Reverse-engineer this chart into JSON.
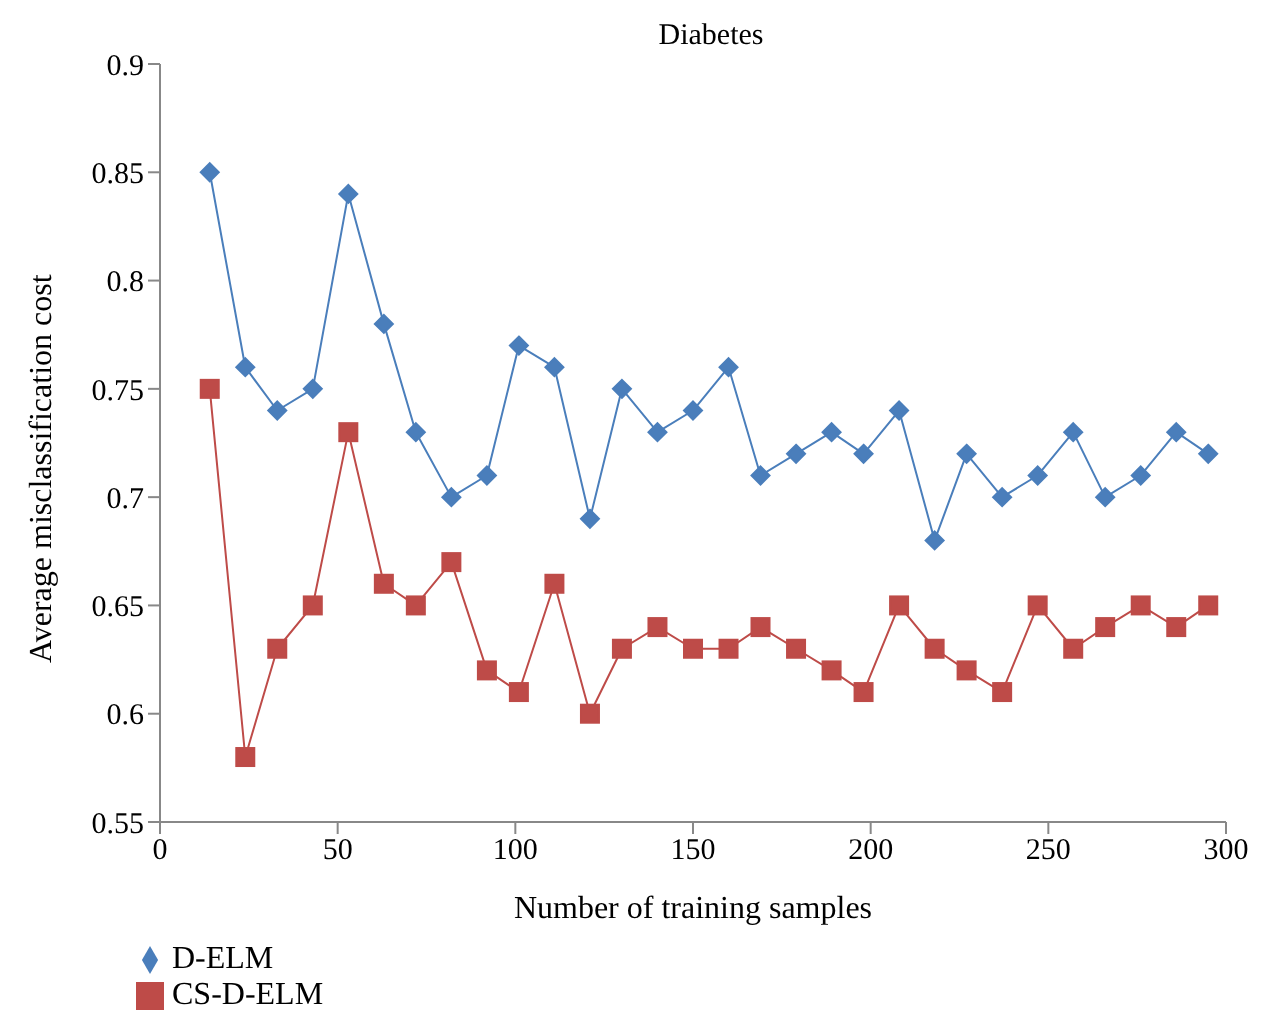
{
  "chart_data": {
    "type": "line",
    "title": "Diabetes",
    "xlabel": "Number of training samples",
    "ylabel": "Average misclassification cost",
    "x": [
      14,
      24,
      33,
      43,
      53,
      63,
      72,
      82,
      92,
      101,
      111,
      121,
      130,
      140,
      150,
      160,
      169,
      179,
      189,
      198,
      208,
      218,
      227,
      237,
      247,
      257,
      266,
      276,
      286,
      295
    ],
    "series": [
      {
        "name": "D-ELM",
        "color": "#4a7ebb",
        "marker": "diamond",
        "values": [
          0.85,
          0.76,
          0.74,
          0.75,
          0.84,
          0.78,
          0.73,
          0.7,
          0.71,
          0.77,
          0.76,
          0.69,
          0.75,
          0.73,
          0.74,
          0.76,
          0.71,
          0.72,
          0.73,
          0.72,
          0.74,
          0.68,
          0.72,
          0.7,
          0.71,
          0.73,
          0.7,
          0.71,
          0.73,
          0.72
        ]
      },
      {
        "name": "CS-D-ELM",
        "color": "#be4b48",
        "marker": "square",
        "values": [
          0.75,
          0.58,
          0.63,
          0.65,
          0.73,
          0.66,
          0.65,
          0.67,
          0.62,
          0.61,
          0.66,
          0.6,
          0.63,
          0.64,
          0.63,
          0.63,
          0.64,
          0.63,
          0.62,
          0.61,
          0.65,
          0.63,
          0.62,
          0.61,
          0.65,
          0.63,
          0.64,
          0.65,
          0.64,
          0.65
        ]
      }
    ],
    "xlim": [
      0,
      300
    ],
    "xticks": [
      0,
      50,
      100,
      150,
      200,
      250,
      300
    ],
    "ylim": [
      0.55,
      0.9
    ],
    "yticks": [
      0.55,
      0.6,
      0.65,
      0.7,
      0.75,
      0.8,
      0.85,
      0.9
    ],
    "grid": false,
    "legend": "bottom left"
  }
}
